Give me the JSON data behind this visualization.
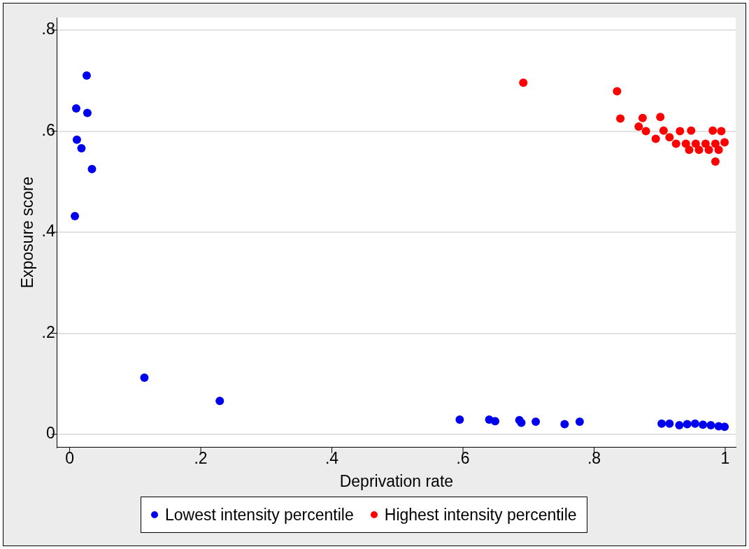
{
  "chart_data": {
    "type": "scatter",
    "xlabel": "Deprivation rate",
    "ylabel": "Exposure score",
    "xlim": [
      -0.019,
      1.016
    ],
    "xticks": [
      {
        "value": 0,
        "label": "0"
      },
      {
        "value": 0.2,
        "label": ".2"
      },
      {
        "value": 0.4,
        "label": ".4"
      },
      {
        "value": 0.6,
        "label": ".6"
      },
      {
        "value": 0.8,
        "label": ".8"
      },
      {
        "value": 1,
        "label": "1"
      }
    ],
    "ylim": [
      -0.026,
      0.825
    ],
    "yticks": [
      {
        "value": 0,
        "label": "0"
      },
      {
        "value": 0.2,
        "label": ".2"
      },
      {
        "value": 0.4,
        "label": ".4"
      },
      {
        "value": 0.6,
        "label": ".6"
      },
      {
        "value": 0.8,
        "label": ".8"
      }
    ],
    "grid": "y",
    "legend": "bottom",
    "marker": "circle",
    "series": [
      {
        "name": "Lowest intensity percentile",
        "color": "#0000ee",
        "x": [
          0.026,
          0.01,
          0.027,
          0.011,
          0.018,
          0.034,
          0.008,
          0.114,
          0.229,
          0.595,
          0.64,
          0.649,
          0.686,
          0.689,
          0.711,
          0.755,
          0.778,
          0.903,
          0.915,
          0.93,
          0.942,
          0.954,
          0.966,
          0.978,
          0.99,
          0.999
        ],
        "values": [
          0.71,
          0.645,
          0.636,
          0.583,
          0.566,
          0.525,
          0.432,
          0.112,
          0.066,
          0.029,
          0.029,
          0.026,
          0.028,
          0.023,
          0.025,
          0.02,
          0.025,
          0.021,
          0.021,
          0.018,
          0.02,
          0.021,
          0.019,
          0.018,
          0.016,
          0.015
        ]
      },
      {
        "name": "Highest intensity percentile",
        "color": "#ff0000",
        "x": [
          0.692,
          0.835,
          0.84,
          0.874,
          0.901,
          0.868,
          0.879,
          0.906,
          0.931,
          0.948,
          0.981,
          0.994,
          0.894,
          0.985,
          0.915,
          0.925,
          0.94,
          0.955,
          0.97,
          0.985,
          0.999,
          0.945,
          0.96,
          0.975,
          0.99
        ],
        "values": [
          0.696,
          0.679,
          0.625,
          0.626,
          0.628,
          0.609,
          0.6,
          0.601,
          0.6,
          0.601,
          0.601,
          0.6,
          0.585,
          0.54,
          0.588,
          0.575,
          0.575,
          0.575,
          0.575,
          0.575,
          0.578,
          0.563,
          0.563,
          0.563,
          0.563
        ]
      }
    ]
  }
}
